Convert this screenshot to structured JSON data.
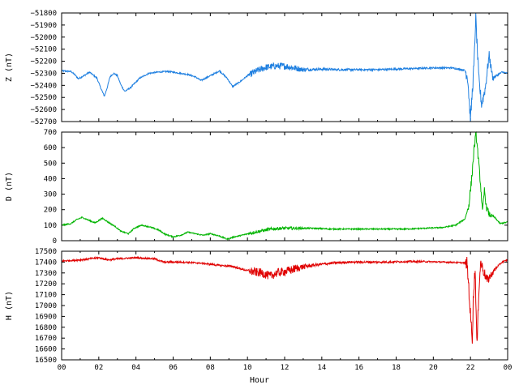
{
  "chart_data": [
    {
      "type": "line",
      "panel": "Z",
      "ylabel": "Z (nT)",
      "ylim": [
        -52700,
        -51800
      ],
      "yticks": [
        -52700,
        -52600,
        -52500,
        -52400,
        -52300,
        -52200,
        -52100,
        -52000,
        -51900,
        -51800
      ],
      "xlim": [
        0,
        24
      ],
      "grid": false,
      "series": [
        {
          "color": "#1e7fe0",
          "noise": [
            [
              0,
              6
            ],
            [
              10,
              6
            ],
            [
              10.2,
              28
            ],
            [
              12.5,
              28
            ],
            [
              13.5,
              10
            ],
            [
              21.7,
              6
            ],
            [
              21.8,
              60
            ],
            [
              23,
              40
            ],
            [
              23.4,
              8
            ],
            [
              24,
              6
            ]
          ],
          "points": [
            [
              0,
              -52280
            ],
            [
              0.5,
              -52285
            ],
            [
              0.7,
              -52310
            ],
            [
              0.9,
              -52345
            ],
            [
              1.2,
              -52320
            ],
            [
              1.5,
              -52290
            ],
            [
              1.9,
              -52340
            ],
            [
              2.1,
              -52420
            ],
            [
              2.3,
              -52490
            ],
            [
              2.45,
              -52420
            ],
            [
              2.6,
              -52330
            ],
            [
              2.8,
              -52300
            ],
            [
              3.0,
              -52320
            ],
            [
              3.2,
              -52400
            ],
            [
              3.4,
              -52450
            ],
            [
              3.7,
              -52420
            ],
            [
              4.2,
              -52340
            ],
            [
              4.7,
              -52300
            ],
            [
              5.2,
              -52290
            ],
            [
              5.7,
              -52285
            ],
            [
              6.2,
              -52295
            ],
            [
              6.8,
              -52310
            ],
            [
              7.2,
              -52330
            ],
            [
              7.5,
              -52360
            ],
            [
              8.0,
              -52320
            ],
            [
              8.5,
              -52280
            ],
            [
              8.9,
              -52340
            ],
            [
              9.2,
              -52410
            ],
            [
              9.6,
              -52370
            ],
            [
              10.0,
              -52320
            ],
            [
              10.5,
              -52280
            ],
            [
              11.0,
              -52250
            ],
            [
              11.5,
              -52240
            ],
            [
              12.0,
              -52240
            ],
            [
              12.5,
              -52255
            ],
            [
              13.0,
              -52270
            ],
            [
              14.0,
              -52265
            ],
            [
              15.0,
              -52270
            ],
            [
              16.0,
              -52270
            ],
            [
              17.0,
              -52270
            ],
            [
              18.0,
              -52265
            ],
            [
              19.0,
              -52260
            ],
            [
              20.0,
              -52255
            ],
            [
              21.0,
              -52255
            ],
            [
              21.7,
              -52275
            ],
            [
              21.85,
              -52330
            ],
            [
              22.0,
              -52690
            ],
            [
              22.1,
              -52450
            ],
            [
              22.2,
              -52200
            ],
            [
              22.28,
              -51830
            ],
            [
              22.35,
              -52050
            ],
            [
              22.45,
              -52350
            ],
            [
              22.6,
              -52560
            ],
            [
              22.8,
              -52420
            ],
            [
              23.0,
              -52150
            ],
            [
              23.2,
              -52340
            ],
            [
              23.4,
              -52320
            ],
            [
              23.7,
              -52290
            ],
            [
              24,
              -52300
            ]
          ]
        }
      ]
    },
    {
      "type": "line",
      "panel": "D",
      "ylabel": "D (nT)",
      "ylim": [
        0,
        700
      ],
      "yticks": [
        0,
        100,
        200,
        300,
        400,
        500,
        600,
        700
      ],
      "xlim": [
        0,
        24
      ],
      "grid": false,
      "series": [
        {
          "color": "#00b400",
          "noise": [
            [
              0,
              4
            ],
            [
              10,
              4
            ],
            [
              10.2,
              10
            ],
            [
              12.5,
              10
            ],
            [
              13.5,
              4
            ],
            [
              21.8,
              4
            ],
            [
              21.9,
              30
            ],
            [
              23,
              20
            ],
            [
              23.3,
              4
            ],
            [
              24,
              4
            ]
          ],
          "points": [
            [
              0,
              100
            ],
            [
              0.5,
              110
            ],
            [
              0.8,
              135
            ],
            [
              1.1,
              150
            ],
            [
              1.5,
              130
            ],
            [
              1.8,
              115
            ],
            [
              2.2,
              145
            ],
            [
              2.5,
              120
            ],
            [
              2.9,
              90
            ],
            [
              3.2,
              60
            ],
            [
              3.6,
              45
            ],
            [
              3.9,
              80
            ],
            [
              4.3,
              100
            ],
            [
              4.7,
              90
            ],
            [
              5.2,
              70
            ],
            [
              5.6,
              40
            ],
            [
              6.0,
              25
            ],
            [
              6.4,
              35
            ],
            [
              6.8,
              55
            ],
            [
              7.2,
              45
            ],
            [
              7.6,
              35
            ],
            [
              8.0,
              45
            ],
            [
              8.5,
              30
            ],
            [
              8.9,
              10
            ],
            [
              9.3,
              25
            ],
            [
              9.7,
              35
            ],
            [
              10.2,
              50
            ],
            [
              10.8,
              65
            ],
            [
              11.3,
              75
            ],
            [
              11.8,
              80
            ],
            [
              12.5,
              80
            ],
            [
              13.5,
              80
            ],
            [
              14.5,
              75
            ],
            [
              15.5,
              75
            ],
            [
              16.5,
              75
            ],
            [
              17.5,
              75
            ],
            [
              18.5,
              75
            ],
            [
              19.5,
              80
            ],
            [
              20.5,
              85
            ],
            [
              21.2,
              100
            ],
            [
              21.7,
              140
            ],
            [
              21.9,
              220
            ],
            [
              22.05,
              380
            ],
            [
              22.2,
              600
            ],
            [
              22.3,
              690
            ],
            [
              22.4,
              560
            ],
            [
              22.55,
              350
            ],
            [
              22.65,
              180
            ],
            [
              22.75,
              330
            ],
            [
              22.85,
              220
            ],
            [
              23.0,
              170
            ],
            [
              23.3,
              150
            ],
            [
              23.6,
              110
            ],
            [
              24,
              120
            ]
          ]
        }
      ]
    },
    {
      "type": "line",
      "panel": "H",
      "ylabel": "H (nT)",
      "xlabel": "Hour",
      "ylim": [
        16500,
        17500
      ],
      "yticks": [
        16500,
        16600,
        16700,
        16800,
        16900,
        17000,
        17100,
        17200,
        17300,
        17400,
        17500
      ],
      "xlim": [
        0,
        24
      ],
      "xticks": [
        "00",
        "02",
        "04",
        "06",
        "08",
        "10",
        "12",
        "14",
        "16",
        "18",
        "20",
        "22",
        "00"
      ],
      "grid": false,
      "series": [
        {
          "color": "#e00000",
          "noise": [
            [
              0,
              8
            ],
            [
              10,
              8
            ],
            [
              10.2,
              40
            ],
            [
              12.5,
              40
            ],
            [
              13.5,
              12
            ],
            [
              21.7,
              6
            ],
            [
              21.8,
              70
            ],
            [
              23,
              40
            ],
            [
              23.5,
              8
            ],
            [
              24,
              6
            ]
          ],
          "points": [
            [
              0,
              17410
            ],
            [
              1.0,
              17420
            ],
            [
              2.0,
              17440
            ],
            [
              2.5,
              17420
            ],
            [
              3.0,
              17430
            ],
            [
              4.0,
              17440
            ],
            [
              5.0,
              17430
            ],
            [
              5.5,
              17400
            ],
            [
              6.5,
              17400
            ],
            [
              7.5,
              17390
            ],
            [
              8.5,
              17370
            ],
            [
              9.2,
              17360
            ],
            [
              9.8,
              17330
            ],
            [
              10.3,
              17310
            ],
            [
              10.8,
              17300
            ],
            [
              11.2,
              17270
            ],
            [
              11.6,
              17300
            ],
            [
              12.2,
              17320
            ],
            [
              12.8,
              17350
            ],
            [
              13.5,
              17370
            ],
            [
              14.5,
              17390
            ],
            [
              15.5,
              17400
            ],
            [
              16.5,
              17400
            ],
            [
              17.5,
              17400
            ],
            [
              18.5,
              17405
            ],
            [
              19.5,
              17405
            ],
            [
              20.5,
              17400
            ],
            [
              21.5,
              17395
            ],
            [
              21.8,
              17390
            ],
            [
              21.9,
              17200
            ],
            [
              22.0,
              16900
            ],
            [
              22.1,
              16700
            ],
            [
              22.15,
              17050
            ],
            [
              22.25,
              17350
            ],
            [
              22.35,
              16600
            ],
            [
              22.45,
              17150
            ],
            [
              22.55,
              17400
            ],
            [
              22.7,
              17320
            ],
            [
              22.9,
              17230
            ],
            [
              23.1,
              17280
            ],
            [
              23.4,
              17350
            ],
            [
              23.7,
              17400
            ],
            [
              24,
              17420
            ]
          ]
        }
      ]
    }
  ]
}
